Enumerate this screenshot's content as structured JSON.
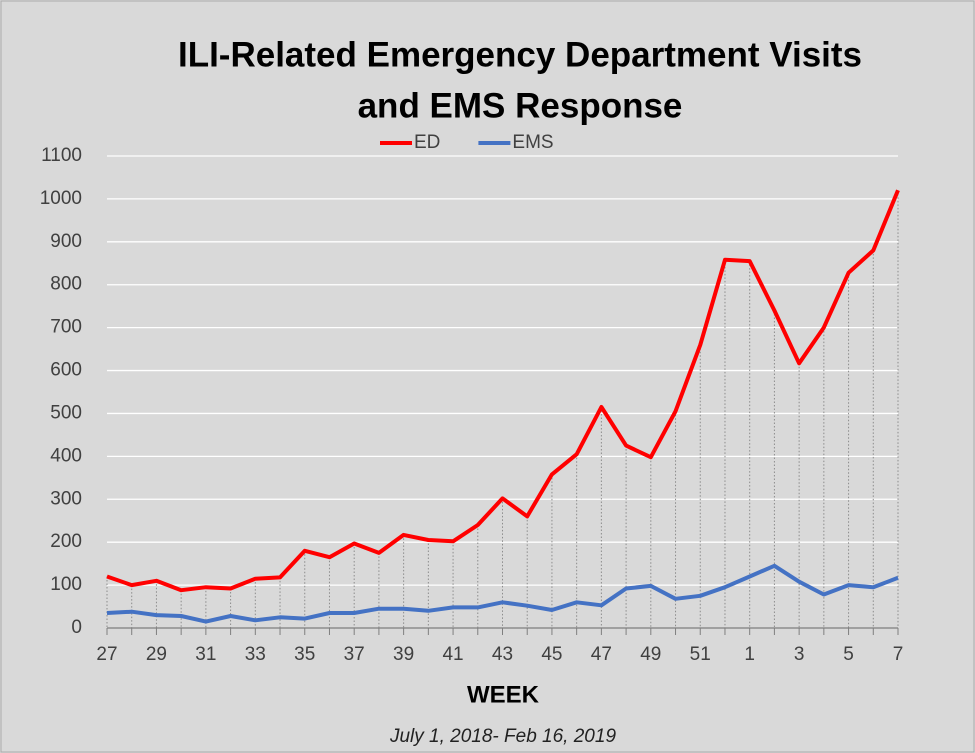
{
  "chart_data": {
    "type": "line",
    "title": [
      "ILI-Related Emergency Department Visits",
      "and EMS Response"
    ],
    "x_label": "WEEK",
    "subtitle": "July 1, 2018- Feb 16, 2019",
    "categories": [
      "27",
      null,
      "29",
      null,
      "31",
      null,
      "33",
      null,
      "35",
      null,
      "37",
      null,
      "39",
      null,
      "41",
      null,
      "43",
      null,
      "45",
      null,
      "47",
      null,
      "49",
      null,
      "51",
      null,
      "1",
      null,
      "3",
      null,
      "5",
      null,
      "7"
    ],
    "series": [
      {
        "name": "ED",
        "color": "#ff0000",
        "values": [
          120,
          100,
          110,
          88,
          95,
          92,
          115,
          118,
          180,
          165,
          197,
          175,
          217,
          205,
          202,
          240,
          302,
          260,
          358,
          405,
          515,
          425,
          398,
          505,
          660,
          858,
          855,
          740,
          617,
          700,
          828,
          880,
          1020
        ]
      },
      {
        "name": "EMS",
        "color": "#4472c4",
        "values": [
          35,
          38,
          30,
          28,
          15,
          28,
          18,
          25,
          22,
          35,
          35,
          45,
          45,
          40,
          48,
          48,
          60,
          52,
          42,
          60,
          53,
          92,
          98,
          68,
          75,
          95,
          120,
          145,
          108,
          78,
          100,
          95,
          117
        ]
      }
    ],
    "ylim": [
      0,
      1100
    ],
    "yticks": [
      0,
      100,
      200,
      300,
      400,
      500,
      600,
      700,
      800,
      900,
      1000,
      1100
    ],
    "grid": true,
    "drop_lines": true,
    "legend": "top"
  }
}
